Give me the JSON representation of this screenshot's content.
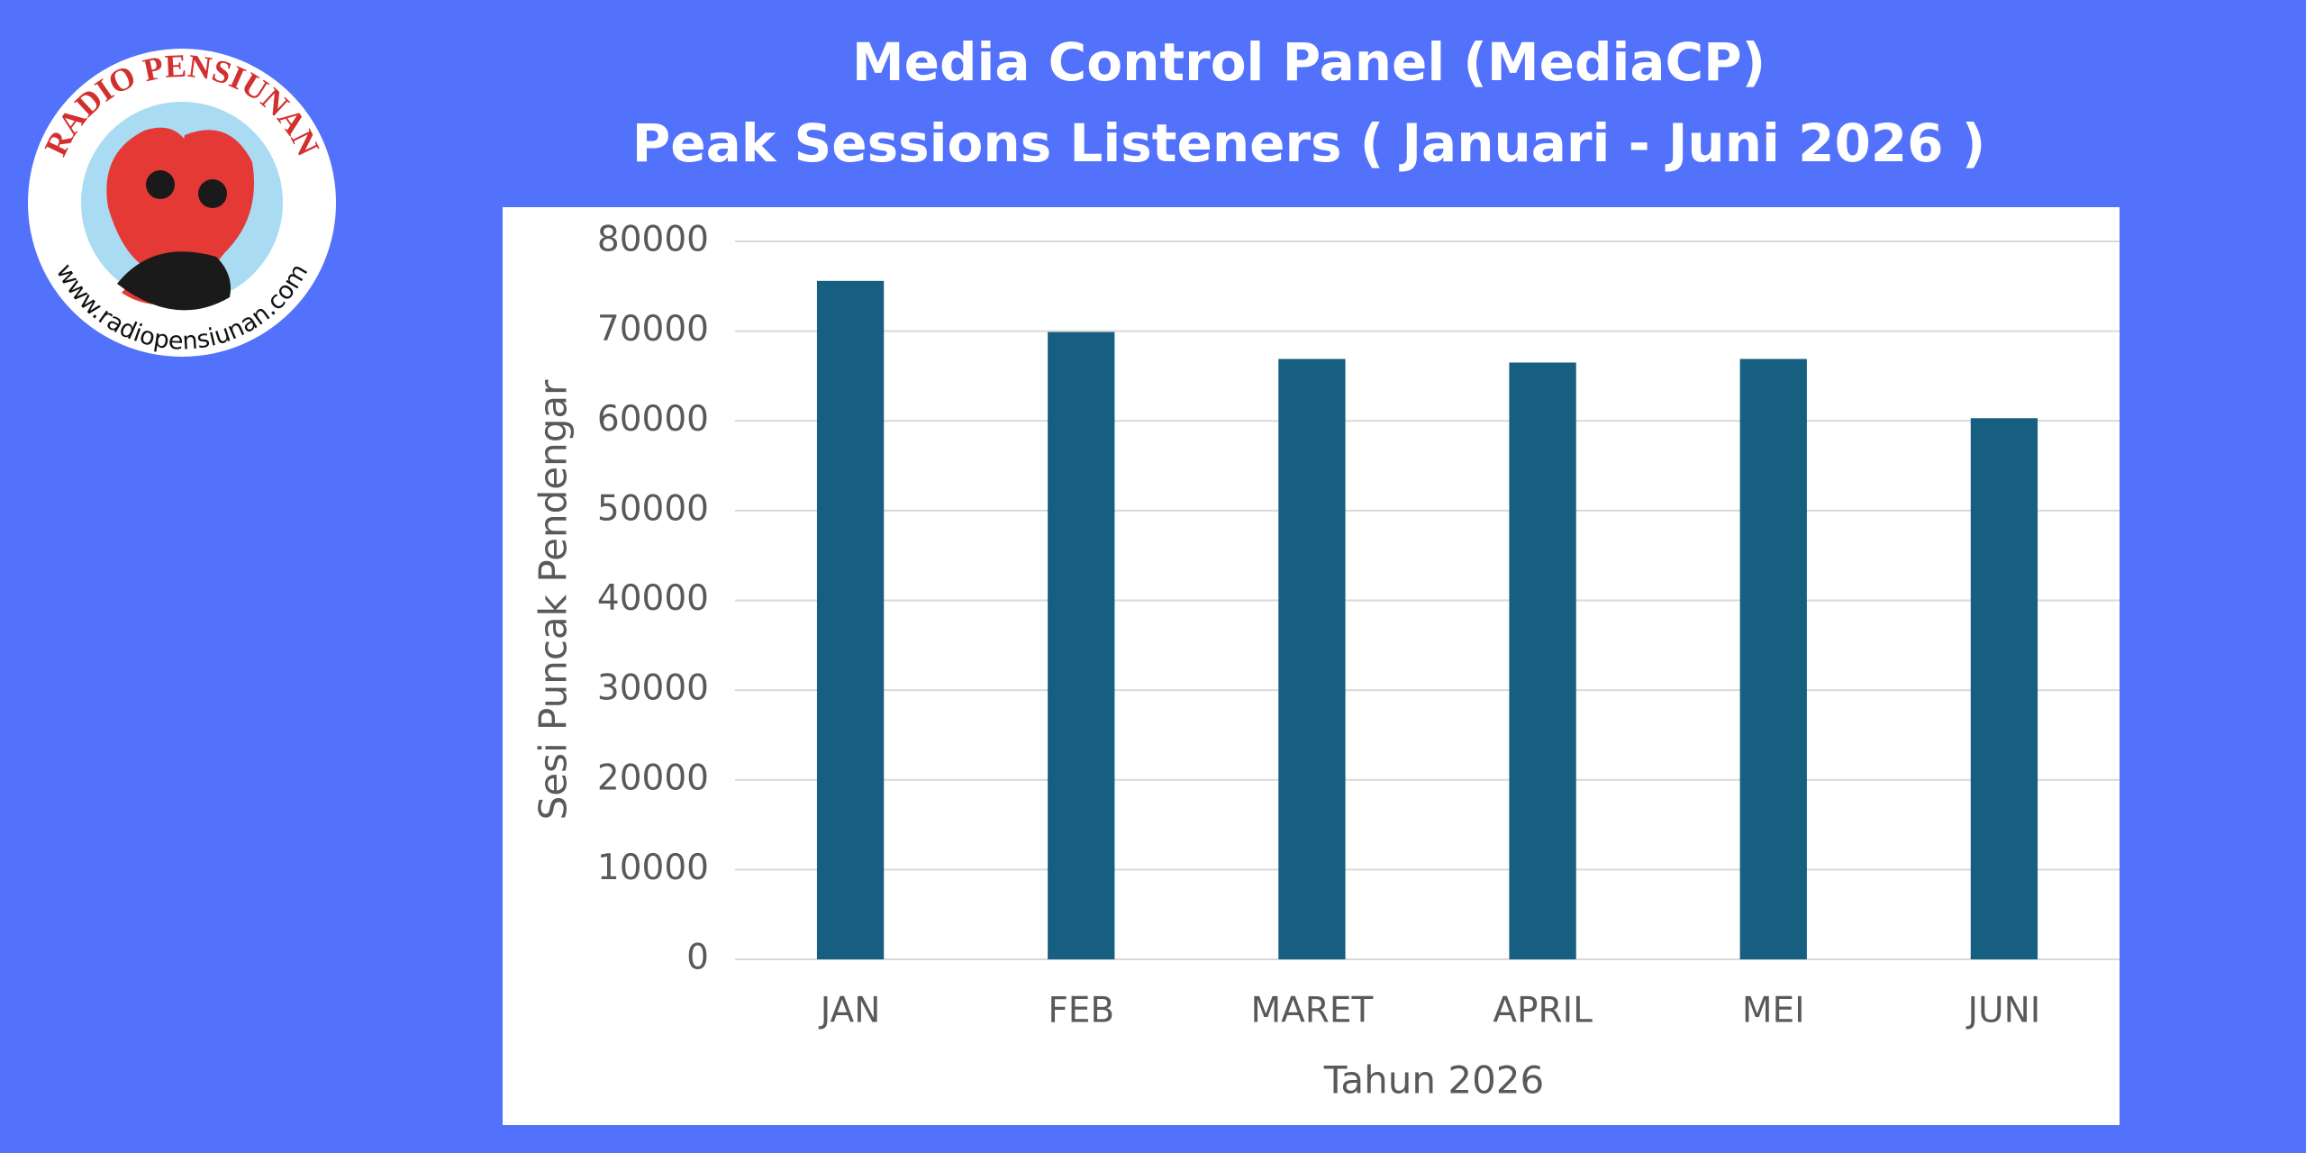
{
  "logo": {
    "name": "RADIO PENSIUNAN",
    "url": "www.radiopensiunan.com"
  },
  "chart_data": {
    "type": "bar",
    "title": "Media Control Panel (MediaCP)",
    "subtitle": "Peak Sessions Listeners ( Januari - Juni 2026 )",
    "x_label": "Tahun 2026",
    "y_label": "Sesi Puncak Pendengar",
    "categories": [
      "JAN",
      "FEB",
      "MARET",
      "APRIL",
      "MEI",
      "JUNI"
    ],
    "values": [
      75600,
      69900,
      66900,
      66500,
      66900,
      60300
    ],
    "color": "#175f80",
    "ylim": [
      0,
      80000
    ],
    "yticks": [
      0,
      10000,
      20000,
      30000,
      40000,
      50000,
      60000,
      70000,
      80000
    ],
    "grid": true
  }
}
